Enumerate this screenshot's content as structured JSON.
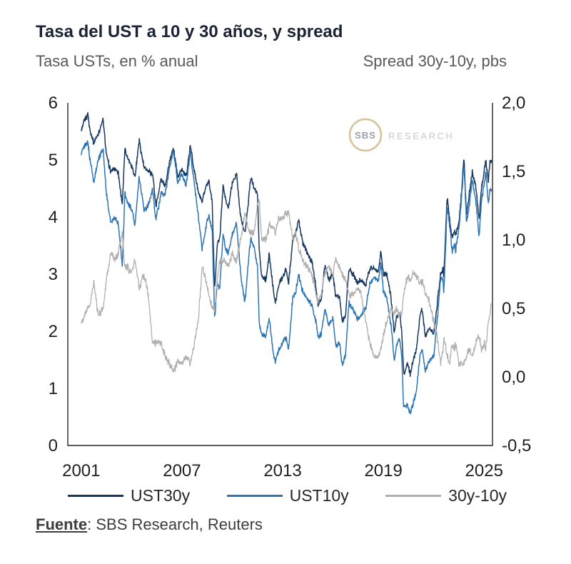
{
  "page": {
    "title": "Tasa del UST a 10 y 30 años, y spread",
    "subtitle_left": "Tasa USTs, en % anual",
    "subtitle_right": "Spread 30y-10y, pbs",
    "source_label": "Fuente",
    "source_rest": ": SBS Research, Reuters",
    "watermark": {
      "circle_text": "SBS",
      "side_text": "RESEARCH"
    }
  },
  "colors": {
    "navy": "#17375E",
    "blue": "#2E75B6",
    "gray": "#B0B0B0",
    "title_text": "#1A2333",
    "subtitle_text": "#595959",
    "axis_line": "#262626",
    "logo_gold": "#D8C39B"
  },
  "chart_data": {
    "type": "line",
    "title": "Tasa del UST a 10 y 30 años, y spread",
    "grid": false,
    "legend_position": "bottom",
    "left_axis": {
      "label": "Tasa USTs, en % anual",
      "min": 0,
      "max": 6,
      "ticks": [
        "6",
        "5",
        "4",
        "3",
        "2",
        "1",
        "0"
      ]
    },
    "right_axis": {
      "label": "Spread 30y-10y, pbs",
      "min": -0.5,
      "max": 2.0,
      "ticks": [
        "2,0",
        "1,5",
        "1,0",
        "0,5",
        "0,0",
        "-0,5"
      ]
    },
    "x_axis": {
      "min": 2000.2,
      "max": 2025.5,
      "tick_years": [
        2001,
        2007,
        2013,
        2019,
        2025
      ],
      "tick_labels": [
        "2001",
        "2007",
        "2013",
        "2019",
        "2025"
      ]
    },
    "x": [
      2001.0,
      2001.2,
      2001.4,
      2001.5,
      2001.75,
      2002.0,
      2002.3,
      2002.5,
      2002.75,
      2003.0,
      2003.2,
      2003.45,
      2003.6,
      2003.75,
      2004.0,
      2004.2,
      2004.45,
      2004.75,
      2005.0,
      2005.25,
      2005.45,
      2005.75,
      2006.0,
      2006.25,
      2006.5,
      2006.75,
      2007.0,
      2007.25,
      2007.5,
      2007.75,
      2008.0,
      2008.2,
      2008.45,
      2008.6,
      2008.8,
      2008.95,
      2009.1,
      2009.25,
      2009.45,
      2009.6,
      2009.75,
      2010.0,
      2010.25,
      2010.5,
      2010.75,
      2011.0,
      2011.1,
      2011.3,
      2011.5,
      2011.6,
      2011.75,
      2012.0,
      2012.2,
      2012.45,
      2012.55,
      2012.75,
      2013.0,
      2013.2,
      2013.35,
      2013.6,
      2013.75,
      2013.95,
      2014.2,
      2014.5,
      2014.75,
      2015.0,
      2015.1,
      2015.3,
      2015.5,
      2015.75,
      2016.0,
      2016.15,
      2016.4,
      2016.55,
      2016.75,
      2016.95,
      2017.2,
      2017.45,
      2017.7,
      2017.95,
      2018.2,
      2018.45,
      2018.7,
      2018.85,
      2019.0,
      2019.2,
      2019.45,
      2019.65,
      2019.75,
      2019.95,
      2020.1,
      2020.2,
      2020.3,
      2020.45,
      2020.6,
      2020.75,
      2020.95,
      2021.2,
      2021.3,
      2021.5,
      2021.75,
      2022.0,
      2022.2,
      2022.4,
      2022.55,
      2022.6,
      2022.8,
      2022.95,
      2023.1,
      2023.25,
      2023.3,
      2023.5,
      2023.65,
      2023.8,
      2023.95,
      2024.1,
      2024.3,
      2024.5,
      2024.7,
      2024.85,
      2025.0,
      2025.1,
      2025.25,
      2025.35,
      2025.45
    ],
    "series": [
      {
        "name": "UST30y",
        "axis": "left",
        "color": "#17375E",
        "values": [
          5.5,
          5.7,
          5.8,
          5.55,
          5.3,
          5.45,
          5.7,
          5.1,
          4.8,
          4.85,
          4.8,
          4.2,
          5.2,
          5.05,
          4.9,
          4.7,
          5.35,
          4.85,
          4.8,
          4.75,
          4.2,
          4.65,
          4.55,
          4.95,
          5.2,
          4.7,
          4.85,
          4.7,
          5.25,
          4.8,
          4.4,
          4.25,
          4.55,
          4.65,
          4.25,
          2.7,
          3.55,
          3.6,
          4.55,
          4.3,
          4.15,
          4.6,
          4.75,
          4.0,
          3.7,
          4.4,
          4.7,
          4.5,
          4.4,
          3.45,
          2.95,
          2.9,
          3.35,
          2.7,
          2.5,
          2.8,
          2.95,
          3.1,
          2.85,
          3.6,
          3.7,
          3.95,
          3.55,
          3.35,
          3.2,
          2.75,
          2.45,
          2.55,
          3.15,
          2.9,
          3.0,
          2.6,
          2.6,
          2.15,
          2.3,
          3.1,
          3.0,
          2.85,
          2.9,
          2.8,
          3.1,
          3.1,
          3.05,
          3.4,
          3.0,
          3.0,
          2.6,
          1.95,
          2.2,
          2.35,
          2.0,
          1.3,
          1.3,
          1.45,
          1.25,
          1.45,
          1.65,
          2.3,
          2.4,
          1.92,
          2.05,
          1.95,
          2.45,
          3.0,
          3.1,
          2.95,
          4.35,
          3.95,
          3.65,
          3.75,
          3.65,
          3.9,
          4.4,
          5.05,
          4.05,
          4.35,
          4.8,
          4.55,
          3.95,
          4.5,
          4.8,
          5.0,
          4.6,
          4.95,
          5.0
        ]
      },
      {
        "name": "UST10y",
        "axis": "left",
        "color": "#2E75B6",
        "values": [
          5.1,
          5.25,
          5.3,
          5.05,
          4.6,
          5.0,
          5.2,
          4.4,
          3.9,
          4.0,
          3.9,
          3.15,
          4.4,
          4.25,
          4.15,
          3.85,
          4.7,
          4.1,
          4.2,
          4.5,
          3.95,
          4.4,
          4.4,
          4.85,
          5.15,
          4.6,
          4.75,
          4.55,
          5.15,
          4.55,
          3.95,
          3.45,
          3.85,
          4.05,
          3.75,
          2.2,
          2.85,
          2.75,
          3.7,
          3.45,
          3.35,
          3.7,
          3.9,
          3.0,
          2.5,
          3.35,
          3.65,
          3.45,
          3.15,
          2.15,
          1.95,
          1.9,
          2.25,
          1.6,
          1.45,
          1.65,
          1.8,
          1.9,
          1.65,
          2.6,
          2.65,
          3.0,
          2.7,
          2.55,
          2.45,
          2.15,
          1.9,
          1.95,
          2.4,
          2.1,
          2.25,
          1.75,
          1.8,
          1.4,
          1.6,
          2.5,
          2.4,
          2.2,
          2.3,
          2.4,
          2.85,
          2.95,
          2.9,
          3.2,
          2.7,
          2.6,
          2.1,
          1.5,
          1.7,
          1.9,
          1.55,
          0.7,
          0.65,
          0.7,
          0.55,
          0.7,
          0.92,
          1.6,
          1.7,
          1.3,
          1.5,
          1.55,
          2.15,
          2.9,
          2.9,
          2.65,
          4.2,
          3.85,
          3.4,
          3.55,
          3.4,
          3.8,
          4.3,
          4.95,
          3.9,
          4.15,
          4.65,
          4.3,
          3.65,
          4.3,
          4.55,
          4.8,
          4.2,
          4.5,
          4.45
        ]
      },
      {
        "name": "30y-10y",
        "axis": "right",
        "color": "#B0B0B0",
        "values": [
          0.4,
          0.45,
          0.5,
          0.5,
          0.7,
          0.45,
          0.5,
          0.7,
          0.9,
          0.85,
          0.9,
          1.05,
          0.8,
          0.8,
          0.75,
          0.85,
          0.65,
          0.75,
          0.6,
          0.25,
          0.25,
          0.25,
          0.15,
          0.1,
          0.05,
          0.1,
          0.1,
          0.15,
          0.1,
          0.25,
          0.45,
          0.8,
          0.7,
          0.6,
          0.5,
          0.5,
          0.7,
          0.85,
          0.85,
          0.85,
          0.8,
          0.9,
          0.85,
          1.0,
          1.2,
          1.05,
          1.05,
          1.05,
          1.25,
          1.3,
          1.0,
          1.0,
          1.1,
          1.1,
          1.05,
          1.15,
          1.15,
          1.2,
          1.2,
          1.0,
          1.05,
          0.95,
          0.85,
          0.8,
          0.75,
          0.6,
          0.55,
          0.6,
          0.75,
          0.8,
          0.75,
          0.85,
          0.8,
          0.75,
          0.7,
          0.6,
          0.6,
          0.65,
          0.6,
          0.4,
          0.25,
          0.15,
          0.15,
          0.2,
          0.3,
          0.4,
          0.5,
          0.45,
          0.5,
          0.45,
          0.45,
          0.6,
          0.65,
          0.75,
          0.7,
          0.75,
          0.73,
          0.7,
          0.7,
          0.62,
          0.55,
          0.4,
          0.3,
          0.1,
          0.2,
          0.3,
          0.15,
          0.1,
          0.25,
          0.2,
          0.25,
          0.1,
          0.1,
          0.1,
          0.15,
          0.2,
          0.15,
          0.25,
          0.3,
          0.2,
          0.25,
          0.2,
          0.4,
          0.45,
          0.55
        ]
      }
    ]
  }
}
